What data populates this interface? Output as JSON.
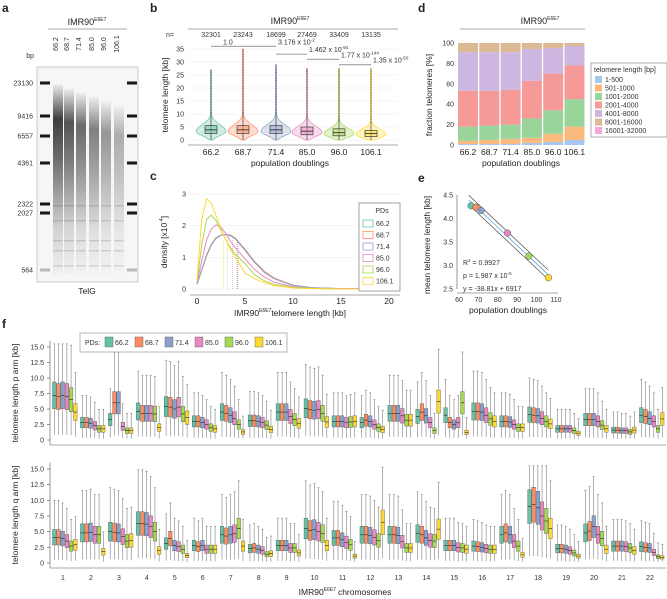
{
  "panel_labels": [
    "a",
    "b",
    "c",
    "d",
    "e",
    "f"
  ],
  "cell_line": {
    "name": "IMR90",
    "sup": "E6E7"
  },
  "panel_a": {
    "bp_label": "bp",
    "lanes": [
      "66.2",
      "68.7",
      "71.4",
      "85.0",
      "96.0",
      "106.1"
    ],
    "markers": [
      "23130",
      "9416",
      "6557",
      "4361",
      "2322",
      "2027",
      "564"
    ],
    "probe": "TelG"
  },
  "pd_colors": {
    "66.2": "#66c2a5",
    "68.7": "#fc8d62",
    "71.4": "#8da0cb",
    "85.0": "#e78ac3",
    "96.0": "#a6d854",
    "106.1": "#ffd92f"
  },
  "chart_data": [
    {
      "id": "b",
      "type": "violin",
      "xlabel": "population doublings",
      "ylabel": "telomere length [kb]",
      "n_label": "n=",
      "categories": [
        "66.2",
        "68.7",
        "71.4",
        "85.0",
        "96.0",
        "106.1"
      ],
      "n": [
        "32301",
        "23243",
        "18699",
        "27469",
        "33409",
        "13135"
      ],
      "yticks": [
        0,
        5,
        10,
        15,
        20,
        25,
        30,
        35
      ],
      "ylim": [
        0,
        35
      ],
      "median": [
        3.9,
        3.9,
        3.9,
        3.4,
        2.8,
        2.5
      ],
      "q1": [
        2.5,
        2.5,
        2.5,
        2.0,
        1.6,
        1.3
      ],
      "q3": [
        5.5,
        5.5,
        5.5,
        5.0,
        4.3,
        3.7
      ],
      "whisker_high": [
        10.5,
        10.5,
        10.5,
        9.5,
        8.2,
        7.0
      ],
      "max": [
        27,
        35,
        29,
        27.5,
        27.5,
        27.5
      ],
      "pvalues": [
        {
          "from": 0,
          "to": 1,
          "label": "1.0",
          "exp": ""
        },
        {
          "from": 1,
          "to": 2,
          "label": "3.176 x 10",
          "exp": "-2"
        },
        {
          "from": 2,
          "to": 3,
          "label": "1.462 x 10",
          "exp": "-94"
        },
        {
          "from": 3,
          "to": 4,
          "label": "1.77 x 10",
          "exp": "-144"
        },
        {
          "from": 4,
          "to": 5,
          "label": "1.35 x 10",
          "exp": "-50"
        }
      ]
    },
    {
      "id": "c",
      "type": "line",
      "xlabel": "telomere length [kb]",
      "ylabel": "density [x10",
      "ylabel_exp": "-4",
      "ylabel_end": "]",
      "legend_title": "PDs",
      "legend_position": "right",
      "xticks": [
        0,
        5,
        10,
        15,
        20
      ],
      "yticks": [
        0,
        1,
        2,
        3
      ],
      "xlim": [
        0,
        20
      ],
      "ylim": [
        0,
        3
      ],
      "x": [
        0,
        0.5,
        1,
        1.5,
        2,
        2.5,
        3,
        3.5,
        4,
        5,
        6,
        7,
        8,
        10,
        12,
        15,
        20
      ],
      "series": [
        {
          "name": "66.2",
          "mean": 4.27,
          "values": [
            0.15,
            0.6,
            1.05,
            1.4,
            1.6,
            1.7,
            1.72,
            1.7,
            1.6,
            1.25,
            0.85,
            0.55,
            0.35,
            0.12,
            0.04,
            0.01,
            0
          ]
        },
        {
          "name": "68.7",
          "mean": 4.24,
          "values": [
            0.15,
            0.6,
            1.05,
            1.4,
            1.6,
            1.7,
            1.72,
            1.7,
            1.6,
            1.25,
            0.87,
            0.56,
            0.35,
            0.12,
            0.04,
            0.01,
            0
          ]
        },
        {
          "name": "71.4",
          "mean": 4.17,
          "values": [
            0.15,
            0.62,
            1.08,
            1.42,
            1.62,
            1.7,
            1.72,
            1.68,
            1.58,
            1.22,
            0.84,
            0.53,
            0.33,
            0.11,
            0.04,
            0.01,
            0
          ]
        },
        {
          "name": "85.0",
          "mean": 3.69,
          "values": [
            0.18,
            0.9,
            1.55,
            1.9,
            2.02,
            1.95,
            1.75,
            1.5,
            1.3,
            0.95,
            0.62,
            0.38,
            0.22,
            0.07,
            0.02,
            0.01,
            0
          ]
        },
        {
          "name": "96.0",
          "mean": 3.2,
          "values": [
            0.2,
            1.4,
            2.2,
            2.33,
            2.15,
            1.85,
            1.55,
            1.3,
            1.1,
            0.8,
            0.45,
            0.26,
            0.15,
            0.05,
            0.02,
            0,
            0
          ]
        },
        {
          "name": "106.1",
          "mean": 2.74,
          "values": [
            0.3,
            2.2,
            2.85,
            2.7,
            2.3,
            1.9,
            1.55,
            1.25,
            1.0,
            0.5,
            0.33,
            0.2,
            0.11,
            0.03,
            0.01,
            0,
            0
          ]
        }
      ]
    },
    {
      "id": "d",
      "type": "bar",
      "stacked": true,
      "xlabel": "population doublings",
      "ylabel": "fraction telomeres [%]",
      "legend_title": "telomere length [bp]",
      "legend_position": "right",
      "categories": [
        "66.2",
        "68.7",
        "71.4",
        "85.0",
        "96.0",
        "106.1"
      ],
      "yticks": [
        0,
        20,
        40,
        60,
        80,
        100
      ],
      "ylim": [
        0,
        100
      ],
      "series": [
        {
          "name": "1-500",
          "color": "#a6c8ec",
          "values": [
            1,
            1,
            1,
            2,
            3,
            5
          ]
        },
        {
          "name": "501-1000",
          "color": "#fcb97d",
          "values": [
            3,
            4,
            5,
            5,
            8,
            13
          ]
        },
        {
          "name": "1001-2000",
          "color": "#99d49a",
          "values": [
            14,
            14,
            14,
            19,
            23,
            27
          ]
        },
        {
          "name": "2001-4000",
          "color": "#f59a98",
          "values": [
            35,
            34,
            34,
            37,
            36,
            33
          ]
        },
        {
          "name": "4001-8000",
          "color": "#cdb6e0",
          "values": [
            38,
            38,
            37,
            31,
            25,
            19
          ]
        },
        {
          "name": "8001-16000",
          "color": "#dcb995",
          "values": [
            9,
            9,
            9,
            6,
            5,
            3
          ]
        },
        {
          "name": "16001-32000",
          "color": "#f2a7d6",
          "values": [
            0,
            0,
            0,
            0,
            0,
            0
          ]
        }
      ]
    },
    {
      "id": "e",
      "type": "scatter",
      "xlabel": "population doublings",
      "ylabel": "mean telomere length [kb]",
      "xticks": [
        60,
        70,
        80,
        90,
        100,
        110
      ],
      "yticks": [
        "2.5",
        "3.0",
        "3.5",
        "4.0",
        "4.5"
      ],
      "xlim": [
        60,
        110
      ],
      "ylim": [
        2.5,
        4.5
      ],
      "points": [
        {
          "pd": "66.2",
          "x": 66.2,
          "y": 4.27
        },
        {
          "pd": "68.7",
          "x": 68.7,
          "y": 4.24
        },
        {
          "pd": "71.4",
          "x": 71.4,
          "y": 4.17
        },
        {
          "pd": "85.0",
          "x": 85.0,
          "y": 3.69
        },
        {
          "pd": "96.0",
          "x": 96.0,
          "y": 3.2
        },
        {
          "pd": "106.1",
          "x": 106.1,
          "y": 2.74
        }
      ],
      "fit": {
        "slope_bp": -38.81,
        "intercept_bp": 6917
      },
      "annotations": {
        "r2": "R",
        "r2_exp": "2",
        "r2_val": " = 0.9927",
        "p": "p = 1.987 x 10",
        "p_exp": "-5",
        "eq": "y = -38.81x + 6917"
      }
    },
    {
      "id": "f",
      "type": "box",
      "xlabel": "chromosomes",
      "legend_title": "PDs:",
      "series_names": [
        "66.2",
        "68.7",
        "71.4",
        "85.0",
        "96.0",
        "106.1"
      ],
      "categories": [
        "1",
        "2",
        "3",
        "4",
        "5",
        "6",
        "7",
        "8",
        "9",
        "10",
        "11",
        "12",
        "13",
        "14",
        "15",
        "16",
        "17",
        "18",
        "19",
        "20",
        "21",
        "22"
      ],
      "yticks": [
        "0",
        "2.5",
        "5.0",
        "7.5",
        "10.0",
        "12.5",
        "15.0"
      ],
      "ylim": [
        0,
        17
      ],
      "p_arm": {
        "ylabel": "telomere length p arm [kb]",
        "medians": [
          [
            7.2,
            7.0,
            7.2,
            7.0,
            6.5,
            4.5
          ],
          [
            2.8,
            2.8,
            2.7,
            2.3,
            1.8,
            1.8
          ],
          [
            3.3,
            6.0,
            6.0,
            2.2,
            1.5,
            1.5
          ],
          [
            4.6,
            4.3,
            4.3,
            4.3,
            4.2,
            2.0
          ],
          [
            5.4,
            5.3,
            5.0,
            5.3,
            4.2,
            3.6
          ],
          [
            3.0,
            3.0,
            2.8,
            2.5,
            2.0,
            1.8
          ],
          [
            4.5,
            4.3,
            4.0,
            3.5,
            2.5,
            1.3
          ],
          [
            3.1,
            3.1,
            3.0,
            2.8,
            2.4,
            1.7
          ],
          [
            4.5,
            4.5,
            4.5,
            3.8,
            3.3,
            2.7
          ],
          [
            5.1,
            4.9,
            4.8,
            4.9,
            4.3,
            2.9
          ],
          [
            3.0,
            3.0,
            3.0,
            2.8,
            2.9,
            3.0
          ],
          [
            2.8,
            3.2,
            3.0,
            2.5,
            2.0,
            1.7
          ],
          [
            4.3,
            4.3,
            4.3,
            3.9,
            3.2,
            3.2
          ],
          [
            3.8,
            4.5,
            3.9,
            2.8,
            1.5,
            6.2
          ],
          [
            4.0,
            2.8,
            2.5,
            2.8,
            6.0,
            1.2
          ],
          [
            4.6,
            4.6,
            4.5,
            4.0,
            3.4,
            3.0
          ],
          [
            3.0,
            3.0,
            2.9,
            2.5,
            2.0,
            2.0
          ],
          [
            4.1,
            4.0,
            3.9,
            3.5,
            3.0,
            2.6
          ],
          [
            1.8,
            1.8,
            1.8,
            1.8,
            1.5,
            1.1
          ],
          [
            3.3,
            3.3,
            3.3,
            3.0,
            2.4,
            1.8
          ],
          [
            1.6,
            1.6,
            1.5,
            1.5,
            1.3,
            1.6
          ],
          [
            4.0,
            3.8,
            3.5,
            3.0,
            1.8,
            3.4
          ]
        ]
      },
      "q_arm": {
        "ylabel": "telomere length q arm [kb]",
        "medians": [
          [
            4.1,
            4.1,
            3.9,
            3.5,
            2.7,
            2.9
          ],
          [
            4.8,
            4.8,
            4.9,
            4.5,
            4.5,
            1.8
          ],
          [
            5.0,
            4.9,
            4.8,
            4.2,
            3.5,
            3.6
          ],
          [
            6.3,
            6.3,
            6.2,
            5.8,
            5.0,
            2.0
          ],
          [
            3.1,
            3.9,
            2.8,
            2.6,
            2.2,
            1.2
          ],
          [
            2.8,
            2.6,
            2.8,
            2.2,
            2.2,
            2.2
          ],
          [
            4.5,
            4.3,
            4.5,
            4.7,
            5.5,
            2.7
          ],
          [
            2.3,
            2.4,
            2.2,
            2.0,
            1.4,
            1.5
          ],
          [
            2.8,
            2.8,
            2.8,
            2.4,
            2.4,
            1.6
          ],
          [
            5.5,
            5.2,
            5.3,
            5.0,
            4.7,
            2.8
          ],
          [
            4.0,
            4.0,
            3.7,
            3.3,
            2.9,
            1.1
          ],
          [
            4.5,
            4.5,
            4.4,
            4.1,
            3.6,
            6.5
          ],
          [
            4.5,
            4.5,
            4.4,
            3.4,
            2.4,
            2.4
          ],
          [
            4.7,
            4.5,
            4.0,
            3.6,
            3.5,
            5.4
          ],
          [
            2.8,
            2.8,
            2.8,
            2.5,
            2.4,
            2.2
          ],
          [
            2.7,
            2.6,
            2.5,
            2.3,
            2.2,
            2.2
          ],
          [
            4.5,
            4.8,
            4.5,
            3.5,
            2.7,
            1.3
          ],
          [
            9.0,
            9.3,
            8.8,
            7.5,
            6.7,
            5.5
          ],
          [
            2.3,
            2.3,
            2.2,
            2.0,
            1.6,
            1.1
          ],
          [
            4.8,
            5.1,
            5.8,
            4.5,
            3.9,
            2.2
          ],
          [
            2.7,
            2.7,
            2.7,
            2.6,
            2.4,
            2.0
          ],
          [
            2.6,
            2.5,
            2.4,
            1.7,
            1.0,
            0.9
          ]
        ]
      }
    }
  ]
}
